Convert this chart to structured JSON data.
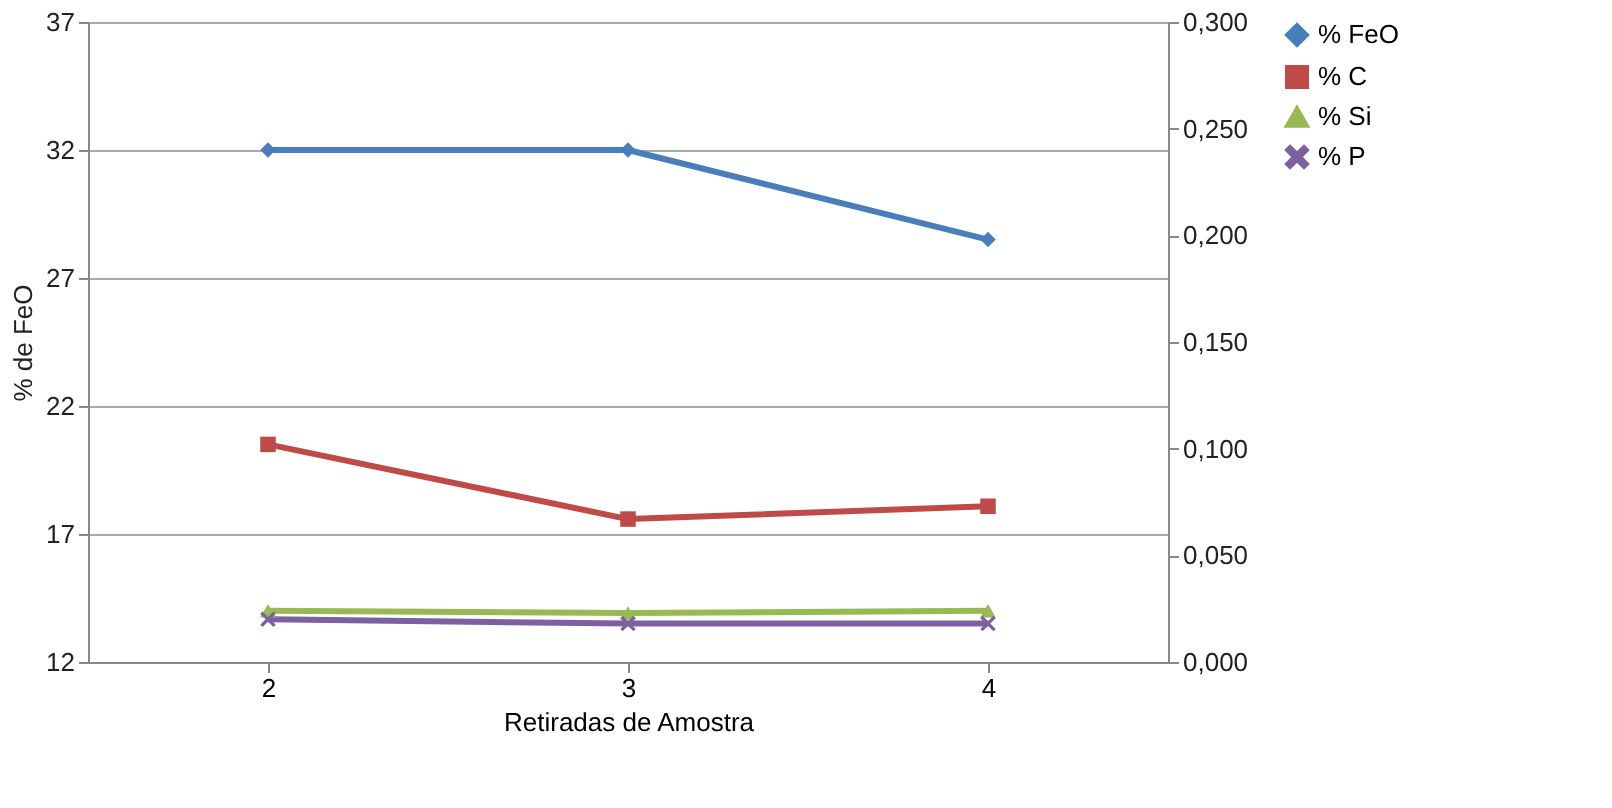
{
  "chart_data": {
    "type": "line",
    "xlabel": "Retiradas de Amostra",
    "ylabel": "% de FeO",
    "categories": [
      "2",
      "3",
      "4"
    ],
    "series": [
      {
        "name": "% FeO",
        "color": "#4a7ebb",
        "marker": "diamond",
        "values": [
          32,
          32,
          28.5
        ]
      },
      {
        "name": "% C",
        "color": "#be4b48",
        "marker": "square",
        "axis": "y2",
        "values": [
          0.102,
          0.067,
          0.073
        ]
      },
      {
        "name": "% Si",
        "color": "#98b954",
        "marker": "triangle",
        "axis": "y2",
        "values": [
          0.024,
          0.023,
          0.024
        ]
      },
      {
        "name": "% P",
        "color": "#7d60a0",
        "marker": "cross",
        "axis": "y2",
        "values": [
          0.02,
          0.018,
          0.018
        ]
      }
    ],
    "ylim": [
      12,
      37
    ],
    "yticks": [
      12,
      17,
      22,
      27,
      32,
      37
    ],
    "y2lim": [
      0,
      0.3
    ],
    "y2ticks": [
      {
        "value": 0,
        "label": "0,000"
      },
      {
        "value": 0.05,
        "label": "0,050"
      },
      {
        "value": 0.1,
        "label": "0,100"
      },
      {
        "value": 0.15,
        "label": "0,150"
      },
      {
        "value": 0.2,
        "label": "0,200"
      },
      {
        "value": 0.25,
        "label": "0,250"
      },
      {
        "value": 0.3,
        "label": "0,300"
      }
    ],
    "grid": "y",
    "legend": "right",
    "line_style": "solid"
  }
}
